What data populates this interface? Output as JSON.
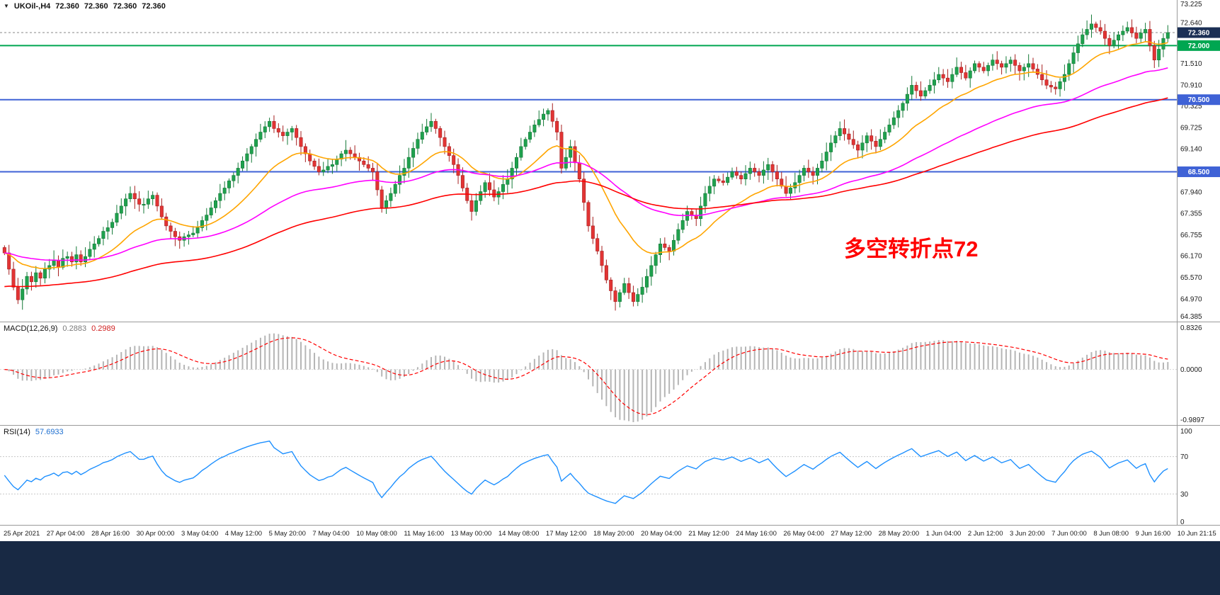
{
  "chart_data": {
    "type": "candlestick",
    "title": "UKOil-,H4",
    "ohlc_display": [
      "72.360",
      "72.360",
      "72.360",
      "72.360"
    ],
    "annotation": {
      "text": "多空转折点72",
      "color": "#ff0000"
    },
    "price_axis": {
      "min": 64.385,
      "max": 73.225,
      "ticks": [
        "73.225",
        "72.640",
        "72.055",
        "71.510",
        "70.910",
        "70.325",
        "69.725",
        "69.140",
        "68.555",
        "67.940",
        "67.355",
        "66.755",
        "66.170",
        "65.570",
        "64.970",
        "64.385"
      ]
    },
    "current_price": {
      "value": 72.36,
      "label": "72.360",
      "bg": "#1b2f55"
    },
    "hlines": [
      {
        "value": 72.0,
        "label": "72.000",
        "color": "#00a651"
      },
      {
        "value": 70.5,
        "label": "70.500",
        "color": "#3f62d6"
      },
      {
        "value": 68.5,
        "label": "68.500",
        "color": "#3f62d6"
      }
    ],
    "candles": {
      "timeframe": "H4",
      "up_color": "#1fa14e",
      "up_border": "#157a38",
      "down_color": "#e23434",
      "down_border": "#a61f1f",
      "closes": [
        66.25,
        65.8,
        65.3,
        64.95,
        65.25,
        65.6,
        65.45,
        65.7,
        65.55,
        65.8,
        65.9,
        66.05,
        65.85,
        66.1,
        66.15,
        66.0,
        66.2,
        66.0,
        66.15,
        66.35,
        66.5,
        66.65,
        66.85,
        66.95,
        67.1,
        67.35,
        67.55,
        67.75,
        67.9,
        67.75,
        67.6,
        67.6,
        67.75,
        67.85,
        67.55,
        67.25,
        67.0,
        66.85,
        66.7,
        66.6,
        66.7,
        66.75,
        66.8,
        66.95,
        67.15,
        67.3,
        67.5,
        67.7,
        67.9,
        68.05,
        68.25,
        68.4,
        68.6,
        68.8,
        69.0,
        69.2,
        69.4,
        69.6,
        69.75,
        69.9,
        69.7,
        69.6,
        69.5,
        69.6,
        69.7,
        69.45,
        69.2,
        69.0,
        68.8,
        68.65,
        68.5,
        68.55,
        68.65,
        68.7,
        68.85,
        69.0,
        69.1,
        69.0,
        68.9,
        68.8,
        68.7,
        68.6,
        68.5,
        68.0,
        67.5,
        67.7,
        67.9,
        68.15,
        68.4,
        68.6,
        68.9,
        69.15,
        69.4,
        69.6,
        69.75,
        69.9,
        69.7,
        69.45,
        69.2,
        68.95,
        68.7,
        68.4,
        68.05,
        67.7,
        67.4,
        67.7,
        67.95,
        68.2,
        68.0,
        67.8,
        67.95,
        68.15,
        68.3,
        68.6,
        68.9,
        69.2,
        69.4,
        69.6,
        69.8,
        69.95,
        70.1,
        70.2,
        69.9,
        69.6,
        68.6,
        68.9,
        69.2,
        68.75,
        68.3,
        67.65,
        67.0,
        66.65,
        66.3,
        65.9,
        65.5,
        65.2,
        64.9,
        65.15,
        65.4,
        65.15,
        64.9,
        65.1,
        65.3,
        65.6,
        65.9,
        66.2,
        66.5,
        66.4,
        66.3,
        66.6,
        66.9,
        67.15,
        67.4,
        67.3,
        67.2,
        67.55,
        67.9,
        68.1,
        68.3,
        68.25,
        68.2,
        68.35,
        68.5,
        68.4,
        68.3,
        68.45,
        68.6,
        68.5,
        68.4,
        68.55,
        68.7,
        68.5,
        68.3,
        68.1,
        67.9,
        68.05,
        68.2,
        68.4,
        68.6,
        68.5,
        68.4,
        68.6,
        68.8,
        69.05,
        69.3,
        69.5,
        69.7,
        69.55,
        69.4,
        69.25,
        69.1,
        69.3,
        69.5,
        69.35,
        69.2,
        69.4,
        69.6,
        69.8,
        70.0,
        70.2,
        70.4,
        70.65,
        70.9,
        70.75,
        70.6,
        70.75,
        70.9,
        71.05,
        71.2,
        71.1,
        71.0,
        71.2,
        71.4,
        71.25,
        71.1,
        71.3,
        71.5,
        71.4,
        71.3,
        71.45,
        71.6,
        71.5,
        71.4,
        71.5,
        71.6,
        71.45,
        71.3,
        71.4,
        71.5,
        71.35,
        71.2,
        71.05,
        70.9,
        70.85,
        70.8,
        71.0,
        71.2,
        71.5,
        71.8,
        72.05,
        72.3,
        72.45,
        72.6,
        72.5,
        72.4,
        72.2,
        72.0,
        72.15,
        72.3,
        72.4,
        72.5,
        72.35,
        72.2,
        72.35,
        72.45,
        72.0,
        71.6,
        71.9,
        72.2,
        72.36
      ]
    },
    "overlays": [
      {
        "name": "ma-fast-line",
        "color": "#ffa500"
      },
      {
        "name": "ma-mid-line",
        "color": "#ff00ff"
      },
      {
        "name": "ma-slow-line",
        "color": "#ff0000"
      }
    ],
    "x_labels": [
      "25 Apr 2021",
      "27 Apr 04:00",
      "28 Apr 16:00",
      "30 Apr 00:00",
      "3 May 04:00",
      "4 May 12:00",
      "5 May 20:00",
      "7 May 04:00",
      "10 May 08:00",
      "11 May 16:00",
      "13 May 00:00",
      "14 May 08:00",
      "17 May 12:00",
      "18 May 20:00",
      "20 May 04:00",
      "21 May 12:00",
      "24 May 16:00",
      "26 May 04:00",
      "27 May 12:00",
      "28 May 20:00",
      "1 Jun 04:00",
      "2 Jun 12:00",
      "3 Jun 20:00",
      "7 Jun 00:00",
      "8 Jun 08:00",
      "9 Jun 16:00",
      "10 Jun 21:15"
    ],
    "subcharts": [
      {
        "label": "MACD(12,26,9)",
        "values": [
          "0.2883",
          "0.2989"
        ],
        "scale_ticks": [
          "0.8326",
          "0.0000",
          "-0.9897"
        ],
        "scale_min": -0.9897,
        "scale_max": 0.8326,
        "histogram_color": "#b5b5b5",
        "signal_color": "#ff0000"
      },
      {
        "label": "RSI(14)",
        "values": [
          "57.6933"
        ],
        "scale_ticks": [
          "100",
          "70",
          "30",
          "0"
        ],
        "levels": [
          70,
          30
        ],
        "scale_min": 0,
        "scale_max": 100,
        "line_color": "#1e90ff"
      }
    ]
  },
  "footer": {
    "color": "#182944"
  }
}
